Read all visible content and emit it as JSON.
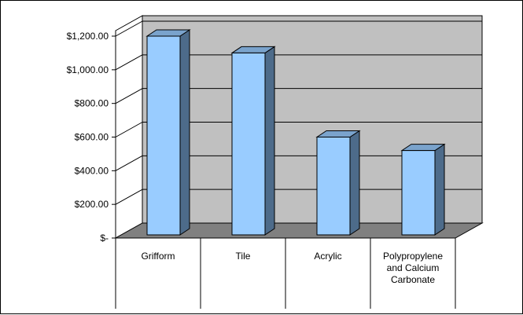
{
  "chart_data": {
    "type": "bar",
    "title": "",
    "xlabel": "",
    "ylabel": "",
    "categories": [
      [
        "Grifform"
      ],
      [
        "Tile"
      ],
      [
        "Acrylic"
      ],
      [
        "Polypropylene",
        "and Calcium",
        "Carbonate"
      ]
    ],
    "values": [
      1200,
      1100,
      600,
      520
    ],
    "ylim": [
      0,
      1200
    ],
    "yticks": [
      0,
      200,
      400,
      600,
      800,
      1000,
      1200
    ],
    "ytick_labels": [
      "$-",
      "$200.00",
      "$400.00",
      "$600.00",
      "$800.00",
      "$1,000.00",
      "$1,200.00"
    ],
    "grid": true,
    "legend": "none",
    "style": "3d-column",
    "colors": {
      "bar_front": "#99ccff",
      "bar_side": "#4d6b8a",
      "bar_top": "#7aa3cc",
      "back_wall": "#c0c0c0",
      "floor": "#808080",
      "gridline": "#000000"
    }
  }
}
